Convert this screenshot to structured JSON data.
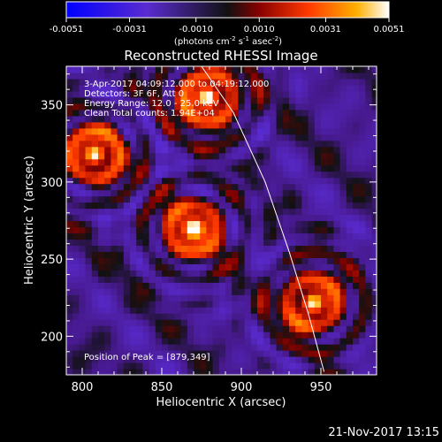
{
  "chart_data": {
    "type": "heatmap",
    "title": "Reconstructed RHESSI Image",
    "xlabel": "Heliocentric X (arcsec)",
    "ylabel": "Heliocentric Y (arcsec)",
    "xlim": [
      790,
      985
    ],
    "ylim": [
      175,
      375
    ],
    "x_ticks": [
      800,
      850,
      900,
      950
    ],
    "y_ticks": [
      200,
      250,
      300,
      350
    ],
    "colorbar": {
      "label_main": "(photons cm",
      "label_exp1": "-2",
      "label_mid": " s",
      "label_exp2": "-1",
      "label_end": " asec",
      "label_exp3": "-2",
      "label_close": ")",
      "min": -0.0051,
      "max": 0.0051,
      "tick_labels": [
        "-0.0051",
        "-0.0031",
        "-0.0010",
        "0.0010",
        "0.0031",
        "0.0051"
      ],
      "tick_values": [
        -0.0051,
        -0.0031,
        -0.001,
        0.001,
        0.0031,
        0.0051
      ]
    },
    "info_lines": [
      "3-Apr-2017 04:09:12.000 to 04:19:12.000",
      "Detectors: 3F 6F, Att 0",
      "Energy Range: 12.0 - 25.0 keV",
      "Clean    Total counts: 1.94E+04"
    ],
    "peak_text": "Position of Peak = [879,349]",
    "peak": [
      879,
      349
    ],
    "sources": [
      {
        "x": 879,
        "y": 355,
        "peak": 0.0051
      },
      {
        "x": 808,
        "y": 318,
        "peak": 0.0043
      },
      {
        "x": 870,
        "y": 270,
        "peak": 0.0046
      },
      {
        "x": 945,
        "y": 222,
        "peak": 0.0048
      }
    ],
    "limb": [
      [
        875,
        375
      ],
      [
        895,
        345
      ],
      [
        915,
        300
      ],
      [
        930,
        255
      ],
      [
        942,
        215
      ],
      [
        952,
        177
      ]
    ]
  },
  "footer_date": "21-Nov-2017 13:15"
}
